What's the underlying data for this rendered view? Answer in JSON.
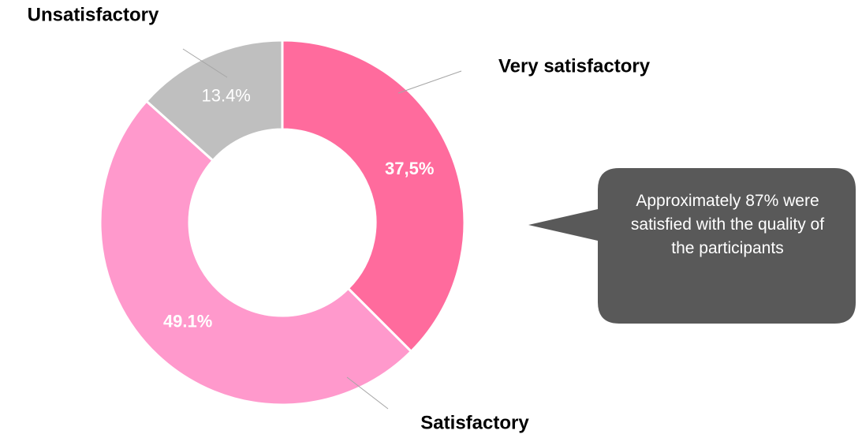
{
  "chart_data": {
    "type": "donut",
    "categories": [
      "Very satisfactory",
      "Satisfactory",
      "Unsatisfactory"
    ],
    "values": [
      37.5,
      49.1,
      13.4
    ],
    "value_labels": [
      "37,5%",
      "49.1%",
      "13.4%"
    ],
    "colors": [
      "#ff6b9d",
      "#ff99cc",
      "#bfbfbf"
    ],
    "annotation": "Approximately 87% were satisfied with the quality of the participants"
  }
}
